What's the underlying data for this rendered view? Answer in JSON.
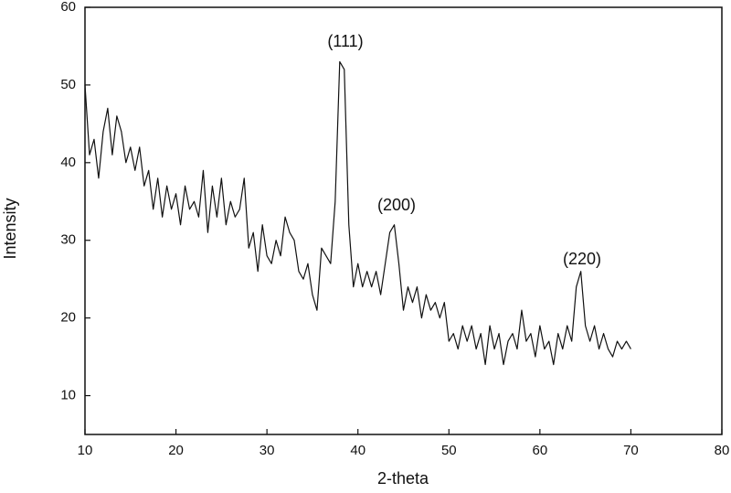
{
  "chart_data": {
    "type": "line",
    "xlabel": "2-theta",
    "ylabel": "Intensity",
    "annotations": [
      "(111)",
      "(200)",
      "(220)"
    ],
    "xlim": [
      10,
      80
    ],
    "ylim": [
      5,
      60
    ],
    "xticks": [
      10,
      20,
      30,
      40,
      50,
      60,
      70,
      80
    ],
    "yticks": [
      10,
      20,
      30,
      40,
      50,
      60
    ],
    "x": [
      10,
      10.5,
      11,
      11.5,
      12,
      12.5,
      13,
      13.5,
      14,
      14.5,
      15,
      15.5,
      16,
      16.5,
      17,
      17.5,
      18,
      18.5,
      19,
      19.5,
      20,
      20.5,
      21,
      21.5,
      22,
      22.5,
      23,
      23.5,
      24,
      24.5,
      25,
      25.5,
      26,
      26.5,
      27,
      27.5,
      28,
      28.5,
      29,
      29.5,
      30,
      30.5,
      31,
      31.5,
      32,
      32.5,
      33,
      33.5,
      34,
      34.5,
      35,
      35.5,
      36,
      36.5,
      37,
      37.5,
      38,
      38.5,
      39,
      39.5,
      40,
      40.5,
      41,
      41.5,
      42,
      42.5,
      43,
      43.5,
      44,
      44.5,
      45,
      45.5,
      46,
      46.5,
      47,
      47.5,
      48,
      48.5,
      49,
      49.5,
      50,
      50.5,
      51,
      51.5,
      52,
      52.5,
      53,
      53.5,
      54,
      54.5,
      55,
      55.5,
      56,
      56.5,
      57,
      57.5,
      58,
      58.5,
      59,
      59.5,
      60,
      60.5,
      61,
      61.5,
      62,
      62.5,
      63,
      63.5,
      64,
      64.5,
      65,
      65.5,
      66,
      66.5,
      67,
      67.5,
      68,
      68.5,
      69,
      69.5,
      70
    ],
    "series": [
      {
        "color": "#111111",
        "values": [
          50,
          41,
          43,
          38,
          44,
          47,
          41,
          46,
          44,
          40,
          42,
          39,
          42,
          37,
          39,
          34,
          38,
          33,
          37,
          34,
          36,
          32,
          37,
          34,
          35,
          33,
          39,
          31,
          37,
          33,
          38,
          32,
          35,
          33,
          34,
          38,
          29,
          31,
          26,
          32,
          28,
          27,
          30,
          28,
          33,
          31,
          30,
          26,
          25,
          27,
          23,
          21,
          29,
          28,
          27,
          35,
          53,
          52,
          32,
          24,
          27,
          24,
          26,
          24,
          26,
          23,
          27,
          31,
          32,
          27,
          21,
          24,
          22,
          24,
          20,
          23,
          21,
          22,
          20,
          22,
          17,
          18,
          16,
          19,
          17,
          19,
          16,
          18,
          14,
          19,
          16,
          18,
          14,
          17,
          18,
          16,
          21,
          17,
          18,
          15,
          19,
          16,
          17,
          14,
          18,
          16,
          19,
          17,
          24,
          26,
          19,
          17,
          19,
          16,
          18,
          16,
          15,
          17,
          16,
          17,
          16
        ]
      }
    ]
  }
}
